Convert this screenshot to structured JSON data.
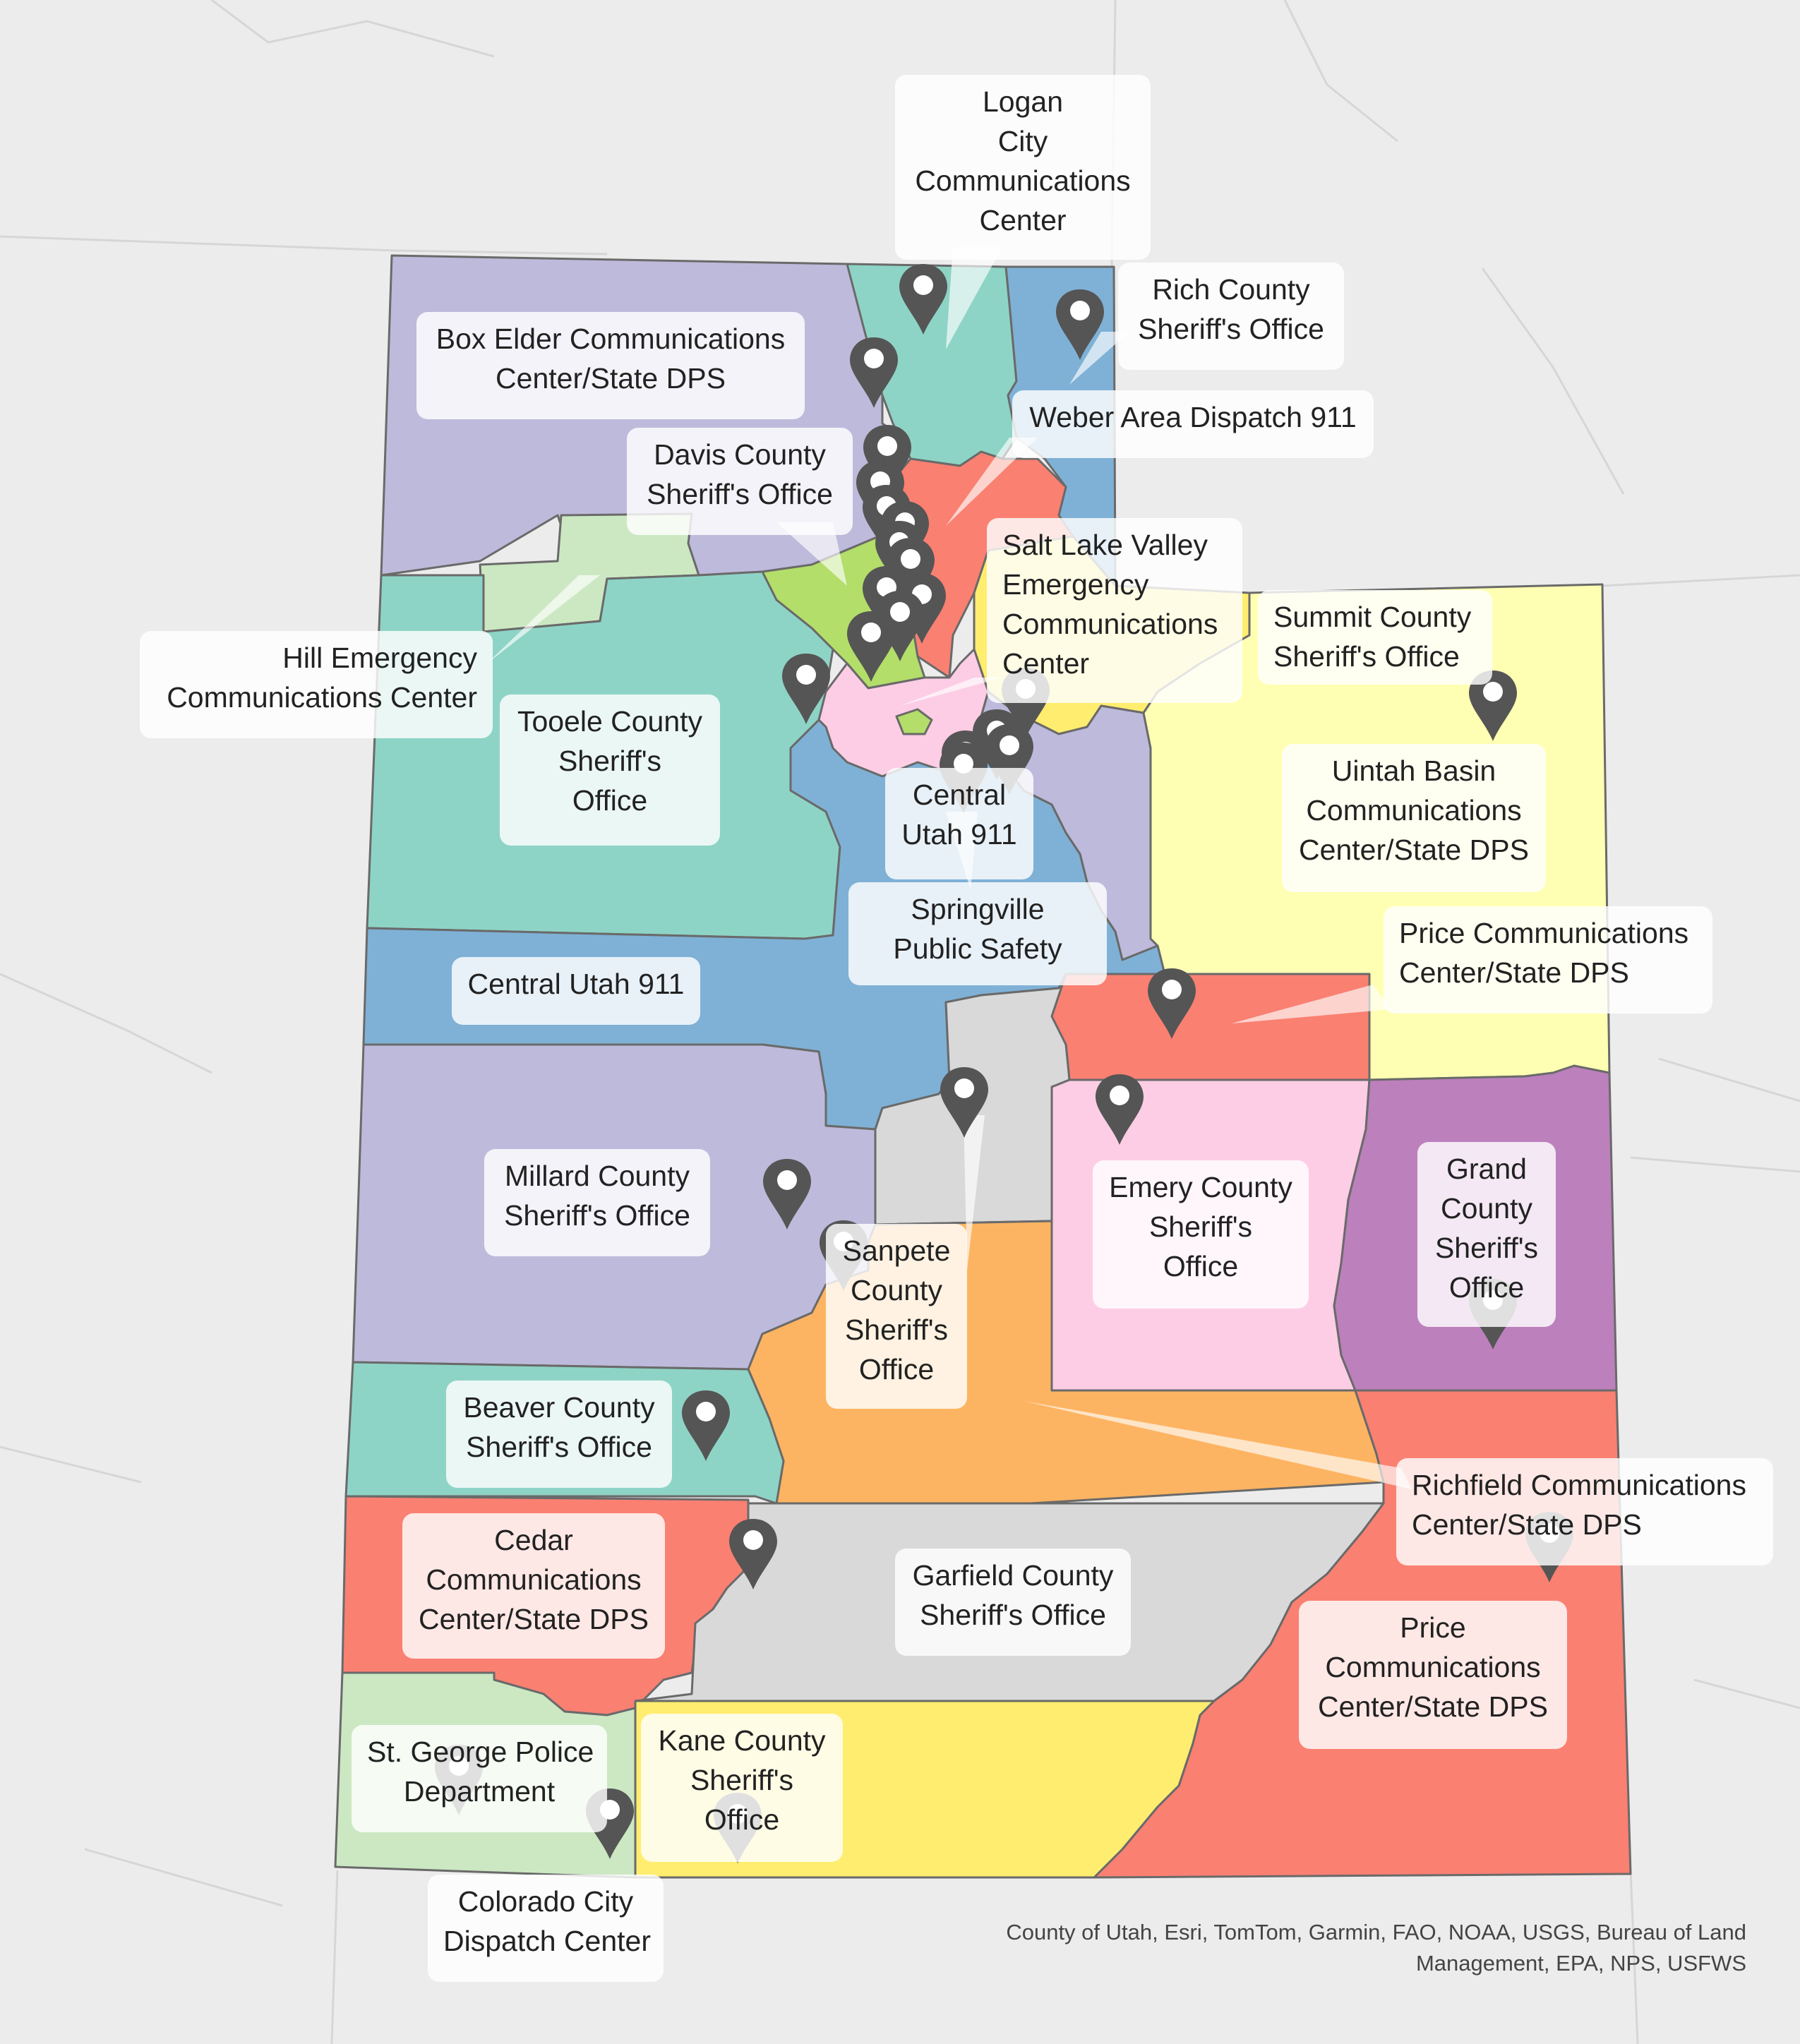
{
  "map": {
    "colors": {
      "background": "#ececec",
      "lavender": "#bebadb",
      "teal": "#8ed4c6",
      "blue": "#7fb1d6",
      "salmon": "#fa8072",
      "lightgreen": "#cce8c3",
      "green": "#b3de69",
      "pink": "#fccde5",
      "lightyellow": "#ffffb3",
      "yellow": "#ffed6f",
      "gray": "#d9d9d9",
      "orange": "#fdb462",
      "purple": "#bc80bd",
      "marker": "#555555"
    },
    "labels": [
      {
        "key": "logan",
        "lines": [
          "Logan",
          "City",
          "Communications",
          "Center"
        ]
      },
      {
        "key": "rich",
        "lines": [
          "Rich County",
          "Sheriff's Office"
        ]
      },
      {
        "key": "boxelder",
        "lines": [
          "Box Elder Communications",
          "Center/State DPS"
        ]
      },
      {
        "key": "weber",
        "lines": [
          "Weber Area Dispatch 911"
        ]
      },
      {
        "key": "davis",
        "lines": [
          "Davis County",
          "Sheriff's Office"
        ]
      },
      {
        "key": "saltlake",
        "lines": [
          "Salt Lake Valley",
          "Emergency",
          "Communications",
          "Center"
        ]
      },
      {
        "key": "summit",
        "lines": [
          "Summit County",
          "Sheriff's Office"
        ]
      },
      {
        "key": "hill",
        "lines": [
          "Hill Emergency",
          "Communications Center"
        ]
      },
      {
        "key": "tooele",
        "lines": [
          "Tooele County",
          "Sheriff's",
          "Office"
        ]
      },
      {
        "key": "uintah",
        "lines": [
          "Uintah Basin",
          "Communications",
          "Center/State DPS"
        ]
      },
      {
        "key": "centralutah1",
        "lines": [
          "Central",
          "Utah 911"
        ]
      },
      {
        "key": "springville",
        "lines": [
          "Springville",
          "Public Safety"
        ]
      },
      {
        "key": "price1",
        "lines": [
          "Price Communications",
          "Center/State DPS"
        ]
      },
      {
        "key": "centralutah2",
        "lines": [
          "Central Utah 911"
        ]
      },
      {
        "key": "millard",
        "lines": [
          "Millard County",
          "Sheriff's Office"
        ]
      },
      {
        "key": "emery",
        "lines": [
          "Emery County",
          "Sheriff's",
          "Office"
        ]
      },
      {
        "key": "grand",
        "lines": [
          "Grand",
          "County",
          "Sheriff's",
          "Office"
        ]
      },
      {
        "key": "sanpete",
        "lines": [
          "Sanpete",
          "County",
          "Sheriff's",
          "Office"
        ]
      },
      {
        "key": "beaver",
        "lines": [
          "Beaver County",
          "Sheriff's Office"
        ]
      },
      {
        "key": "richfield",
        "lines": [
          "Richfield Communications",
          "Center/State DPS"
        ]
      },
      {
        "key": "cedar",
        "lines": [
          "Cedar",
          "Communications",
          "Center/State DPS"
        ]
      },
      {
        "key": "garfield",
        "lines": [
          "Garfield County",
          "Sheriff's Office"
        ]
      },
      {
        "key": "price2",
        "lines": [
          "Price",
          "Communications",
          "Center/State DPS"
        ]
      },
      {
        "key": "stgeorge",
        "lines": [
          "St. George Police",
          "Department"
        ]
      },
      {
        "key": "kane",
        "lines": [
          "Kane County",
          "Sheriff's",
          "Office"
        ]
      },
      {
        "key": "coloradocity",
        "lines": [
          "Colorado City",
          "Dispatch Center"
        ]
      }
    ],
    "attribution": [
      "County of Utah, Esri, TomTom, Garmin, FAO, NOAA, USGS, Bureau of Land",
      "Management, EPA, NPS, USFWS"
    ]
  }
}
